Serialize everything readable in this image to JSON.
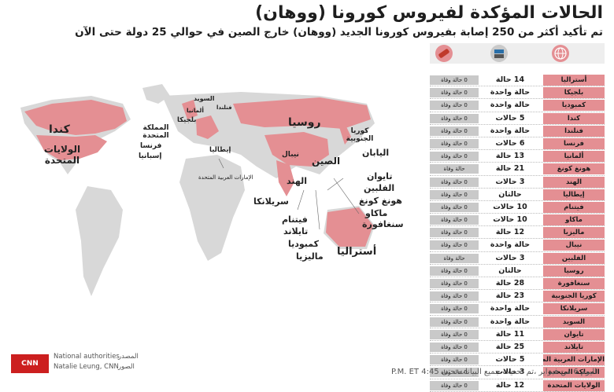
{
  "header": {
    "title": "الحالات المؤكدة لفيروس كورونا (ووهان)",
    "subtitle": "تم تأكيد أكثر من 250 إصابة بفيروس كورونا الجديد (ووهان) خارج الصين في حوالي 25 دولة حتى الآن"
  },
  "icons": [
    "globe-icon",
    "patient-icon",
    "death-icon"
  ],
  "colors": {
    "accent": "#e48f93",
    "map_land": "#d8d8d8",
    "highlight": "#e48f93",
    "death_pill": "#c9c9c9",
    "brand": "#cc1f1f"
  },
  "map_labels": {
    "usa": "الولايات المتحدة",
    "canada": "كندا",
    "uk": "المملكة المتحدة",
    "france": "فرنسا",
    "spain": "إسبانيا",
    "belgium": "بلجيكا",
    "germany": "ألمانيا",
    "sweden": "السويد",
    "finland": "فنلندا",
    "italy": "إيطاليا",
    "russia": "روسيا",
    "uae": "الإمارات العربية المتحدة",
    "china": "الصين",
    "nepal": "نيبال",
    "india": "الهند",
    "srilanka": "سريلانكا",
    "skorea": "كوريا الجنوبية",
    "japan": "اليابان",
    "taiwan": "تايوان",
    "philippines": "الفلبين",
    "hongkong": "هونغ كونغ",
    "macau": "ماكاو",
    "singapore": "سنغافورة",
    "vietnam": "فيتنام",
    "thailand": "تايلاند",
    "cambodia": "كمبوديا",
    "malaysia": "ماليزيا",
    "australia": "أستراليا"
  },
  "chart_data": {
    "type": "table",
    "columns": [
      "الدولة",
      "الحالات",
      "الوفيات"
    ],
    "rows": [
      {
        "country": "أستراليا",
        "cases": "14 حالة",
        "deaths": "0 حالة وفاة"
      },
      {
        "country": "بلجيكا",
        "cases": "حالة واحدة",
        "deaths": "0 حالة وفاة"
      },
      {
        "country": "كمبوديا",
        "cases": "حالة واحدة",
        "deaths": "0 حالة وفاة"
      },
      {
        "country": "كندا",
        "cases": "5 حالات",
        "deaths": "0 حالة وفاة"
      },
      {
        "country": "فنلندا",
        "cases": "حالة واحدة",
        "deaths": "0 حالة وفاة"
      },
      {
        "country": "فرنسا",
        "cases": "6 حالات",
        "deaths": "0 حالة وفاة"
      },
      {
        "country": "ألمانيا",
        "cases": "13 حالة",
        "deaths": "0 حالة وفاة"
      },
      {
        "country": "هونغ كونغ",
        "cases": "21 حالة",
        "deaths": "حالة وفاة"
      },
      {
        "country": "الهند",
        "cases": "3 حالات",
        "deaths": "0 حالة وفاة"
      },
      {
        "country": "إيطاليا",
        "cases": "حالتان",
        "deaths": "0 حالة وفاة"
      },
      {
        "country": "فيتنام",
        "cases": "10 حالات",
        "deaths": "0 حالة وفاة"
      },
      {
        "country": "ماكاو",
        "cases": "10 حالات",
        "deaths": "0 حالة وفاة"
      },
      {
        "country": "ماليزيا",
        "cases": "12 حالة",
        "deaths": "0 حالة وفاة"
      },
      {
        "country": "نيبال",
        "cases": "حالة واحدة",
        "deaths": "0 حالة وفاة"
      },
      {
        "country": "الفلبين",
        "cases": "3 حالات",
        "deaths": "حالة وفاة"
      },
      {
        "country": "روسيا",
        "cases": "حالتان",
        "deaths": "0 حالة وفاة"
      },
      {
        "country": "سنغافورة",
        "cases": "28 حالة",
        "deaths": "0 حالة وفاة"
      },
      {
        "country": "كوريا الجنوبية",
        "cases": "23 حالة",
        "deaths": "0 حالة وفاة"
      },
      {
        "country": "سريلانكا",
        "cases": "حالة واحدة",
        "deaths": "0 حالة وفاة"
      },
      {
        "country": "السويد",
        "cases": "حالة واحدة",
        "deaths": "0 حالة وفاة"
      },
      {
        "country": "تايوان",
        "cases": "11 حالة",
        "deaths": "0 حالة وفاة"
      },
      {
        "country": "تايلاند",
        "cases": "25 حالة",
        "deaths": "0 حالة وفاة"
      },
      {
        "country": "الإمارات العربية المتحدة",
        "cases": "5 حالات",
        "deaths": "0 حالة وفاة"
      },
      {
        "country": "المملكة المتحدة",
        "cases": "3 حالات",
        "deaths": "0 حالة وفاة"
      },
      {
        "country": "الولايات المتحدة",
        "cases": "12 حالة",
        "deaths": "0 حالة وفاة"
      }
    ]
  },
  "footer": {
    "date": "اليوم 6 من فبراير ،تم تحديث جميع البيانات حتى 4:45 P.M. ET",
    "logo": "CNN بالعربية",
    "source_en": "National authorities",
    "source_ar": "المصدر",
    "graphic_en": "Natalie Leung, CNN",
    "graphic_ar": "الصور"
  }
}
